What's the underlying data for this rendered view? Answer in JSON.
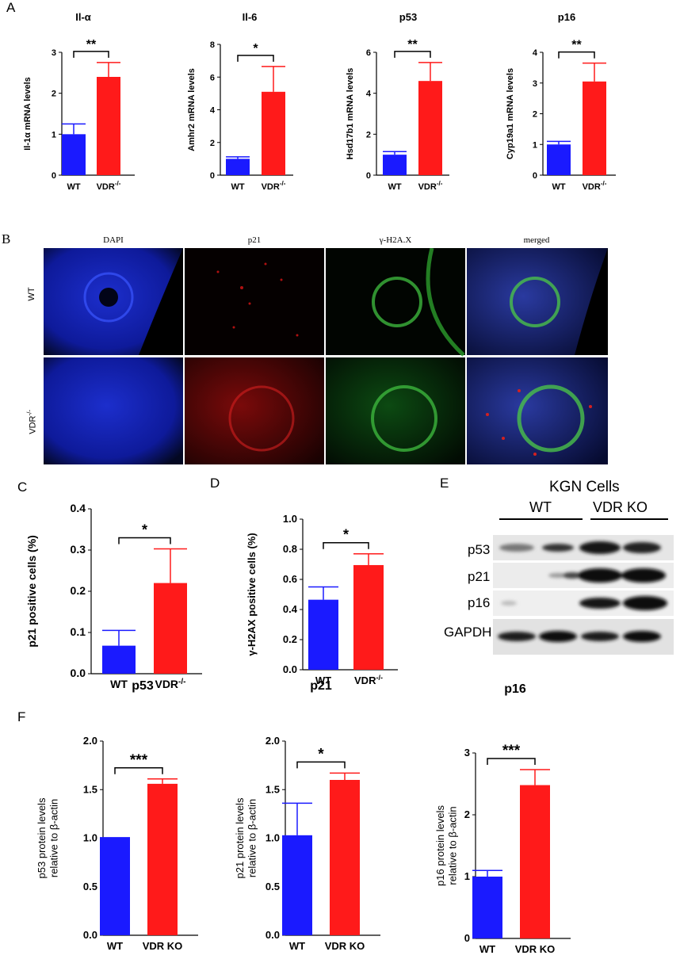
{
  "panels": {
    "A": "A",
    "B": "B",
    "C": "C",
    "D": "D",
    "E": "E",
    "F": "F"
  },
  "panel_b": {
    "columns": [
      "DAPI",
      "p21",
      "γ-H2A.X",
      "merged"
    ],
    "rows": [
      "WT",
      "VDR-/-"
    ]
  },
  "panel_e": {
    "title": "KGN Cells",
    "groups": [
      "WT",
      "VDR KO"
    ],
    "bands": [
      "p53",
      "p21",
      "p16",
      "GAPDH"
    ]
  },
  "chart_data": [
    {
      "id": "A1",
      "type": "bar",
      "title": "Il-α",
      "ylabel": "Il-1α mRNA levels",
      "categories": [
        "WT",
        "VDR-/-"
      ],
      "values": [
        1.0,
        2.4
      ],
      "errors": [
        0.25,
        0.35
      ],
      "ylim": [
        0,
        3
      ],
      "yticks": [
        0,
        1,
        2,
        3
      ],
      "sig": "**",
      "colors": [
        "#1a1aff",
        "#ff1a1a"
      ]
    },
    {
      "id": "A2",
      "type": "bar",
      "title": "Il-6",
      "ylabel": "Amhr2 mRNA levels",
      "categories": [
        "WT",
        "VDR-/-"
      ],
      "values": [
        1.0,
        5.1
      ],
      "errors": [
        0.12,
        1.55
      ],
      "ylim": [
        0,
        8
      ],
      "yticks": [
        0,
        2,
        4,
        6,
        8
      ],
      "sig": "*",
      "colors": [
        "#1a1aff",
        "#ff1a1a"
      ]
    },
    {
      "id": "A3",
      "type": "bar",
      "title": "p53",
      "ylabel": "Hsd17b1 mRNA levels",
      "categories": [
        "WT",
        "VDR-/-"
      ],
      "values": [
        1.0,
        4.6
      ],
      "errors": [
        0.15,
        0.9
      ],
      "ylim": [
        0,
        6
      ],
      "yticks": [
        0,
        2,
        4,
        6
      ],
      "sig": "**",
      "colors": [
        "#1a1aff",
        "#ff1a1a"
      ]
    },
    {
      "id": "A4",
      "type": "bar",
      "title": "p16",
      "ylabel": "Cyp19a1 mRNA levels",
      "categories": [
        "WT",
        "VDR-/-"
      ],
      "values": [
        1.0,
        3.05
      ],
      "errors": [
        0.1,
        0.6
      ],
      "ylim": [
        0,
        4
      ],
      "yticks": [
        0,
        1,
        2,
        3,
        4
      ],
      "sig": "**",
      "colors": [
        "#1a1aff",
        "#ff1a1a"
      ]
    },
    {
      "id": "C",
      "type": "bar",
      "title": "",
      "ylabel": "p21 positive cells (%)",
      "categories": [
        "WT",
        "VDR-/-"
      ],
      "values": [
        0.068,
        0.22
      ],
      "errors": [
        0.037,
        0.083
      ],
      "ylim": [
        0,
        0.4
      ],
      "yticks": [
        "0.0",
        "0.1",
        "0.2",
        "0.3",
        "0.4"
      ],
      "sig": "*",
      "colors": [
        "#1a1aff",
        "#ff1a1a"
      ]
    },
    {
      "id": "D",
      "type": "bar",
      "title": "",
      "ylabel": "γ-H2AX positive cells (%)",
      "categories": [
        "WT",
        "VDR-/-"
      ],
      "values": [
        0.465,
        0.695
      ],
      "errors": [
        0.085,
        0.075
      ],
      "ylim": [
        0,
        1.0
      ],
      "yticks": [
        "0.0",
        "0.2",
        "0.4",
        "0.6",
        "0.8",
        "1.0"
      ],
      "sig": "*",
      "colors": [
        "#1a1aff",
        "#ff1a1a"
      ]
    },
    {
      "id": "F1",
      "type": "bar",
      "title": "p53",
      "ylabel": "p53 protein levels relative to β-actin",
      "categories": [
        "WT",
        "VDR KO"
      ],
      "values": [
        1.0,
        1.56
      ],
      "errors": [
        0.005,
        0.05
      ],
      "ylim": [
        0,
        2.0
      ],
      "yticks": [
        "0.0",
        "0.5",
        "1.0",
        "1.5",
        "2.0"
      ],
      "sig": "***",
      "colors": [
        "#1a1aff",
        "#ff1a1a"
      ]
    },
    {
      "id": "F2",
      "type": "bar",
      "title": "p21",
      "ylabel": "p21 protein levels relative to β-actin",
      "categories": [
        "WT",
        "VDR KO"
      ],
      "values": [
        1.03,
        1.6
      ],
      "errors": [
        0.33,
        0.07
      ],
      "ylim": [
        0,
        2.0
      ],
      "yticks": [
        "0.0",
        "0.5",
        "1.0",
        "1.5",
        "2.0"
      ],
      "sig": "*",
      "colors": [
        "#1a1aff",
        "#ff1a1a"
      ]
    },
    {
      "id": "F3",
      "type": "bar",
      "title": "p16",
      "ylabel": "p16 protein levels relative to β-actin",
      "categories": [
        "WT",
        "VDR KO"
      ],
      "values": [
        1.0,
        2.48
      ],
      "errors": [
        0.1,
        0.25
      ],
      "ylim": [
        0,
        3
      ],
      "yticks": [
        0,
        1,
        2,
        3
      ],
      "sig": "***",
      "colors": [
        "#1a1aff",
        "#ff1a1a"
      ]
    }
  ]
}
